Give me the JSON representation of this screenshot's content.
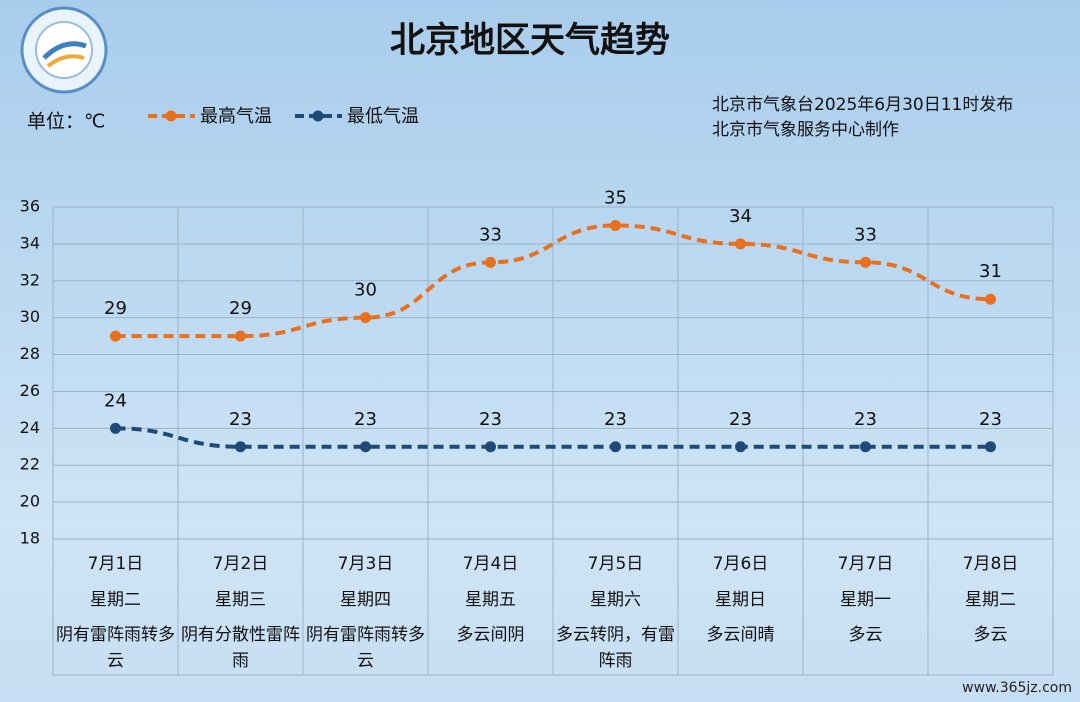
{
  "chart_data": {
    "type": "line",
    "title": "北京地区天气趋势",
    "unit": "单位：℃",
    "notes": [
      "北京市气象台2025年6月30日11时发布",
      "北京市气象服务中心制作"
    ],
    "categories": [
      "7月1日",
      "7月2日",
      "7月3日",
      "7月4日",
      "7月5日",
      "7月6日",
      "7月7日",
      "7月8日"
    ],
    "weekdays": [
      "星期二",
      "星期三",
      "星期四",
      "星期五",
      "星期六",
      "星期日",
      "星期一",
      "星期二"
    ],
    "weather": [
      "阴有雷阵雨转多云",
      "阴有分散性雷阵雨",
      "阴有雷阵雨转多云",
      "多云间阴",
      "多云转阴，有雷阵雨",
      "多云间晴",
      "多云",
      "多云"
    ],
    "series": [
      {
        "name": "最高气温",
        "color": "#e8701f",
        "values": [
          29,
          29,
          30,
          33,
          35,
          34,
          33,
          31
        ]
      },
      {
        "name": "最低气温",
        "color": "#1f4a78",
        "values": [
          24,
          23,
          23,
          23,
          23,
          23,
          23,
          23
        ]
      }
    ],
    "ylim": [
      18,
      36
    ],
    "yticks": [
      18,
      20,
      22,
      24,
      26,
      28,
      30,
      32,
      34,
      36
    ],
    "grid": true
  },
  "watermark": "www.365jz.com"
}
